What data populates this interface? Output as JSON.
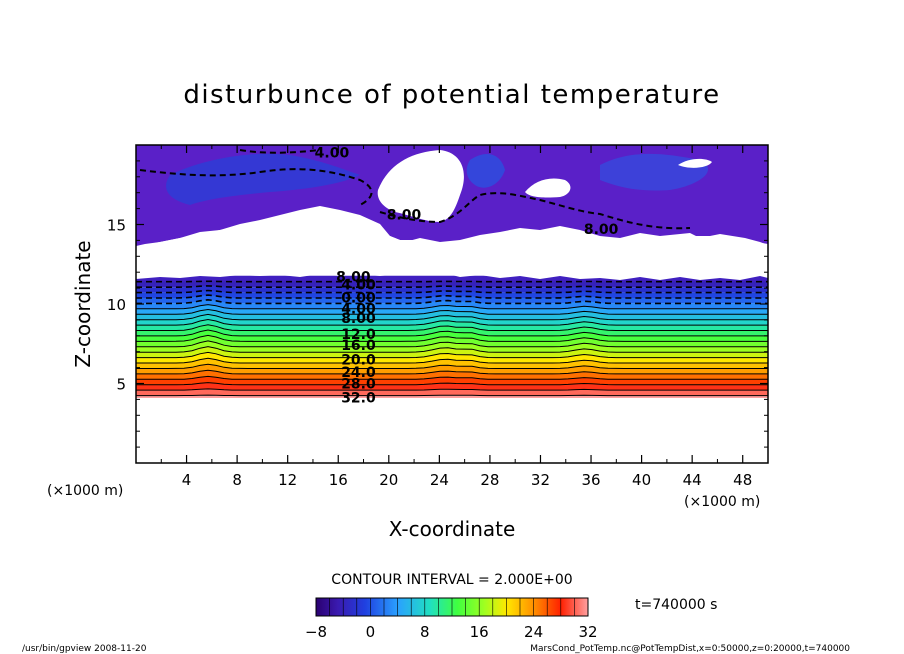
{
  "chart_data": {
    "type": "heatmap",
    "title": "disturbunce of potential temperature",
    "xlabel": "X-coordinate",
    "ylabel": "Z-coordinate",
    "x_unit": "(×1000 m)",
    "z_unit": "(×1000 m)",
    "xlim": [
      0,
      50
    ],
    "ylim": [
      0,
      20
    ],
    "x_ticks": [
      4,
      8,
      12,
      16,
      20,
      24,
      28,
      32,
      36,
      40,
      44,
      48
    ],
    "y_ticks": [
      5,
      10,
      15
    ],
    "contour_interval": "CONTOUR INTERVAL = 2.000E+00",
    "time_label": "t=740000 s",
    "colorbar": {
      "min": -8,
      "max": 32,
      "labels": [
        -8,
        0,
        8,
        16,
        24,
        32
      ]
    },
    "contour_labels": [
      {
        "text": "4.00",
        "x": 15.5,
        "z": 19.2
      },
      {
        "text": "8.00",
        "x": 21.2,
        "z": 15.3
      },
      {
        "text": "8.00",
        "x": 36.8,
        "z": 14.4
      },
      {
        "text": "8.00",
        "x": 17.2,
        "z": 11.4
      },
      {
        "text": "4.00",
        "x": 17.6,
        "z": 10.9
      },
      {
        "text": "0.00",
        "x": 17.6,
        "z": 10.1
      },
      {
        "text": "4.00",
        "x": 17.6,
        "z": 9.4
      },
      {
        "text": "8.00",
        "x": 17.6,
        "z": 8.8
      },
      {
        "text": "12.0",
        "x": 17.6,
        "z": 7.8
      },
      {
        "text": "16.0",
        "x": 17.6,
        "z": 7.1
      },
      {
        "text": "20.0",
        "x": 17.6,
        "z": 6.2
      },
      {
        "text": "24.0",
        "x": 17.6,
        "z": 5.4
      },
      {
        "text": "28.0",
        "x": 17.6,
        "z": 4.7
      },
      {
        "text": "32.0",
        "x": 17.6,
        "z": 3.8
      }
    ],
    "footer_left": "/usr/bin/gpview  2008-11-20",
    "footer_right": "MarsCond_PotTemp.nc@PotTempDist,x=0:50000,z=0:20000,t=740000"
  }
}
